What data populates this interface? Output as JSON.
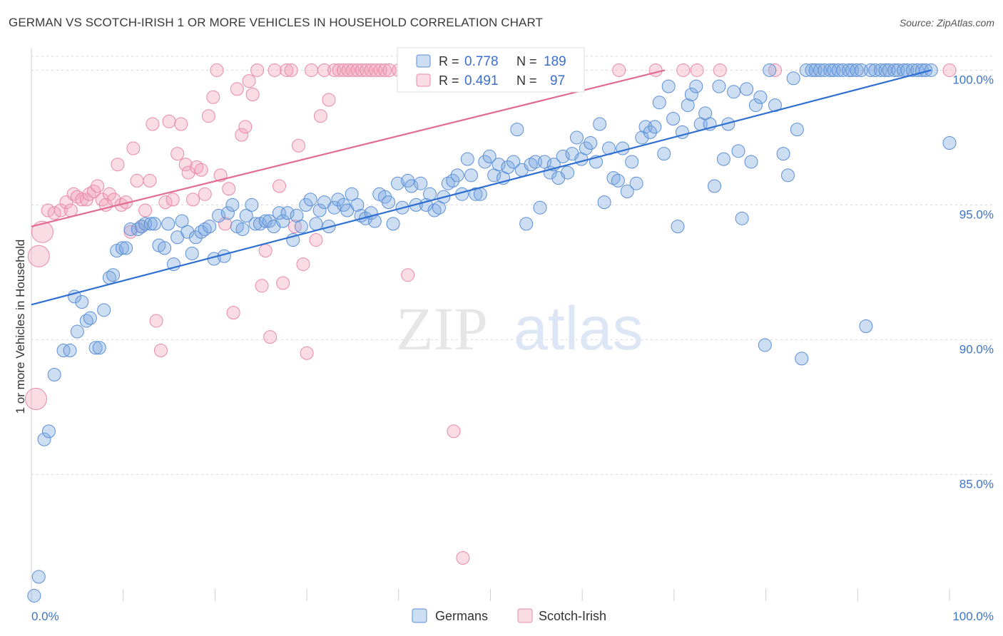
{
  "title": "GERMAN VS SCOTCH-IRISH 1 OR MORE VEHICLES IN HOUSEHOLD CORRELATION CHART",
  "source": "Source: ZipAtlas.com",
  "watermark": {
    "zip": "ZIP",
    "atlas": "atlas"
  },
  "legend_top": [
    {
      "r_label": "R =",
      "r_value": "0.778",
      "n_label": "N =",
      "n_value": "189",
      "color": "#7ba7e0"
    },
    {
      "r_label": "R =",
      "r_value": "0.491",
      "n_label": "N =",
      "n_value": "97",
      "color": "#f1a3bb"
    }
  ],
  "legend_bottom": [
    {
      "label": "Germans",
      "color": "#7ba7e0"
    },
    {
      "label": "Scotch-Irish",
      "color": "#f1a3bb"
    }
  ],
  "chart_data": {
    "type": "scatter",
    "title": "GERMAN VS SCOTCH-IRISH 1 OR MORE VEHICLES IN HOUSEHOLD CORRELATION CHART",
    "xlabel": "",
    "ylabel": "1 or more Vehicles in Household",
    "xlim": [
      0,
      100
    ],
    "ylim": [
      80.3,
      100.7
    ],
    "x_ticks": [
      "0.0%",
      "100.0%"
    ],
    "y_ticks": [
      {
        "value": 85,
        "label": "85.0%"
      },
      {
        "value": 90,
        "label": "90.0%"
      },
      {
        "value": 95,
        "label": "95.0%"
      },
      {
        "value": 100,
        "label": "100.0%"
      }
    ],
    "grid": true,
    "legend_position": "top-center",
    "series": [
      {
        "name": "Germans",
        "color": "#7ba7e0",
        "trendline": {
          "x": [
            0,
            98
          ],
          "y": [
            91.3,
            100.0
          ]
        },
        "points": [
          [
            0.3,
            80.5
          ],
          [
            0.8,
            81.2
          ],
          [
            1.4,
            86.3
          ],
          [
            1.9,
            86.6
          ],
          [
            2.5,
            88.7
          ],
          [
            3.5,
            89.6
          ],
          [
            4.2,
            89.6
          ],
          [
            4.7,
            91.6
          ],
          [
            5.0,
            90.3
          ],
          [
            5.5,
            91.4
          ],
          [
            6.0,
            90.7
          ],
          [
            6.4,
            90.8
          ],
          [
            7.0,
            89.7
          ],
          [
            7.4,
            89.7
          ],
          [
            7.9,
            91.1
          ],
          [
            8.5,
            92.3
          ],
          [
            8.9,
            92.4
          ],
          [
            9.3,
            93.3
          ],
          [
            9.9,
            93.4
          ],
          [
            10.3,
            93.4
          ],
          [
            10.8,
            94.1
          ],
          [
            11.6,
            94.1
          ],
          [
            12.0,
            94.2
          ],
          [
            12.4,
            94.3
          ],
          [
            13.0,
            94.3
          ],
          [
            13.4,
            94.3
          ],
          [
            13.9,
            93.5
          ],
          [
            14.5,
            93.4
          ],
          [
            14.9,
            94.3
          ],
          [
            15.5,
            92.8
          ],
          [
            15.9,
            93.8
          ],
          [
            16.4,
            94.4
          ],
          [
            17.0,
            94.0
          ],
          [
            17.5,
            93.2
          ],
          [
            17.9,
            93.8
          ],
          [
            18.5,
            94.0
          ],
          [
            18.9,
            94.1
          ],
          [
            19.4,
            94.2
          ],
          [
            19.9,
            93.0
          ],
          [
            20.4,
            94.6
          ],
          [
            21.0,
            93.1
          ],
          [
            21.4,
            94.7
          ],
          [
            21.9,
            95.0
          ],
          [
            22.4,
            94.2
          ],
          [
            23.0,
            94.1
          ],
          [
            23.4,
            94.6
          ],
          [
            24.0,
            95.0
          ],
          [
            24.4,
            94.3
          ],
          [
            24.9,
            94.3
          ],
          [
            25.5,
            94.4
          ],
          [
            25.9,
            94.4
          ],
          [
            26.4,
            94.2
          ],
          [
            27.0,
            94.7
          ],
          [
            27.4,
            94.4
          ],
          [
            27.9,
            94.7
          ],
          [
            28.5,
            93.7
          ],
          [
            28.9,
            94.6
          ],
          [
            29.4,
            94.2
          ],
          [
            29.9,
            95.0
          ],
          [
            30.4,
            95.2
          ],
          [
            31.0,
            94.3
          ],
          [
            31.4,
            94.8
          ],
          [
            31.9,
            95.1
          ],
          [
            32.4,
            94.2
          ],
          [
            33.0,
            94.9
          ],
          [
            33.4,
            95.2
          ],
          [
            34.0,
            95.0
          ],
          [
            34.4,
            94.8
          ],
          [
            34.9,
            95.4
          ],
          [
            35.5,
            95.0
          ],
          [
            35.9,
            94.6
          ],
          [
            36.4,
            94.5
          ],
          [
            37.0,
            94.7
          ],
          [
            37.4,
            94.4
          ],
          [
            37.9,
            95.4
          ],
          [
            38.5,
            95.3
          ],
          [
            38.9,
            95.1
          ],
          [
            39.4,
            94.3
          ],
          [
            39.9,
            95.8
          ],
          [
            40.4,
            94.9
          ],
          [
            41.0,
            95.9
          ],
          [
            41.4,
            95.7
          ],
          [
            41.9,
            95.0
          ],
          [
            42.4,
            95.8
          ],
          [
            43.0,
            95.0
          ],
          [
            43.4,
            95.4
          ],
          [
            43.9,
            94.8
          ],
          [
            44.4,
            94.9
          ],
          [
            44.9,
            95.3
          ],
          [
            45.4,
            95.8
          ],
          [
            45.9,
            95.9
          ],
          [
            46.4,
            96.1
          ],
          [
            46.9,
            95.4
          ],
          [
            47.5,
            96.7
          ],
          [
            47.9,
            96.1
          ],
          [
            48.4,
            95.4
          ],
          [
            48.9,
            95.4
          ],
          [
            49.4,
            96.6
          ],
          [
            49.9,
            96.8
          ],
          [
            50.4,
            96.1
          ],
          [
            50.9,
            96.5
          ],
          [
            51.4,
            96.0
          ],
          [
            51.9,
            96.4
          ],
          [
            52.5,
            96.6
          ],
          [
            52.9,
            97.8
          ],
          [
            53.4,
            96.3
          ],
          [
            53.9,
            94.3
          ],
          [
            54.4,
            96.5
          ],
          [
            54.9,
            96.6
          ],
          [
            55.4,
            94.9
          ],
          [
            55.9,
            96.6
          ],
          [
            56.5,
            96.2
          ],
          [
            56.9,
            96.5
          ],
          [
            57.4,
            96.0
          ],
          [
            57.9,
            96.8
          ],
          [
            58.4,
            96.2
          ],
          [
            58.9,
            96.9
          ],
          [
            59.4,
            97.5
          ],
          [
            59.9,
            96.7
          ],
          [
            60.4,
            97.1
          ],
          [
            60.9,
            97.3
          ],
          [
            61.5,
            96.6
          ],
          [
            61.9,
            98.0
          ],
          [
            62.4,
            95.1
          ],
          [
            62.9,
            97.1
          ],
          [
            63.4,
            96.0
          ],
          [
            63.9,
            95.9
          ],
          [
            64.4,
            97.1
          ],
          [
            64.9,
            95.5
          ],
          [
            65.4,
            96.6
          ],
          [
            65.9,
            95.8
          ],
          [
            66.5,
            97.5
          ],
          [
            66.9,
            97.9
          ],
          [
            67.4,
            97.7
          ],
          [
            67.9,
            97.9
          ],
          [
            68.4,
            98.8
          ],
          [
            68.9,
            96.9
          ],
          [
            69.4,
            99.4
          ],
          [
            69.9,
            98.2
          ],
          [
            70.4,
            94.2
          ],
          [
            70.9,
            97.7
          ],
          [
            71.5,
            98.7
          ],
          [
            71.9,
            99.1
          ],
          [
            72.4,
            99.4
          ],
          [
            72.9,
            98.0
          ],
          [
            73.4,
            98.4
          ],
          [
            73.9,
            98.0
          ],
          [
            74.4,
            95.7
          ],
          [
            74.9,
            99.4
          ],
          [
            75.4,
            96.7
          ],
          [
            75.9,
            98.0
          ],
          [
            76.5,
            99.2
          ],
          [
            77.0,
            97.0
          ],
          [
            77.4,
            94.5
          ],
          [
            77.9,
            99.3
          ],
          [
            78.4,
            96.6
          ],
          [
            78.9,
            98.7
          ],
          [
            79.4,
            99.0
          ],
          [
            79.9,
            89.8
          ],
          [
            80.4,
            100
          ],
          [
            81.0,
            98.7
          ],
          [
            81.9,
            96.9
          ],
          [
            82.4,
            96.1
          ],
          [
            83.0,
            99.7
          ],
          [
            83.4,
            97.8
          ],
          [
            83.9,
            89.3
          ],
          [
            84.4,
            100
          ],
          [
            85.0,
            100
          ],
          [
            85.4,
            100
          ],
          [
            85.9,
            100
          ],
          [
            86.4,
            100
          ],
          [
            87.0,
            100
          ],
          [
            87.4,
            100
          ],
          [
            87.9,
            100
          ],
          [
            88.4,
            100
          ],
          [
            89.0,
            100
          ],
          [
            89.4,
            100
          ],
          [
            89.9,
            100
          ],
          [
            90.4,
            100
          ],
          [
            90.9,
            90.5
          ],
          [
            91.4,
            100
          ],
          [
            91.9,
            100
          ],
          [
            92.5,
            100
          ],
          [
            93.0,
            100
          ],
          [
            93.4,
            100
          ],
          [
            94.0,
            100
          ],
          [
            94.4,
            100
          ],
          [
            95.0,
            100
          ],
          [
            95.4,
            100
          ],
          [
            96.0,
            100
          ],
          [
            96.5,
            100
          ],
          [
            97.0,
            100
          ],
          [
            97.4,
            100
          ],
          [
            98.0,
            100
          ],
          [
            100.0,
            97.3
          ]
        ]
      },
      {
        "name": "Scotch-Irish",
        "color": "#f1a3bb",
        "trendline": {
          "x": [
            0,
            69
          ],
          "y": [
            94.2,
            100.0
          ]
        },
        "points": [
          [
            0.5,
            87.8
          ],
          [
            0.8,
            93.1
          ],
          [
            1.2,
            94.0
          ],
          [
            1.8,
            94.8
          ],
          [
            2.5,
            94.7
          ],
          [
            3.2,
            94.8
          ],
          [
            3.8,
            95.1
          ],
          [
            4.3,
            94.8
          ],
          [
            4.6,
            95.4
          ],
          [
            5.0,
            95.3
          ],
          [
            5.5,
            95.2
          ],
          [
            6.0,
            95.2
          ],
          [
            6.3,
            95.4
          ],
          [
            6.8,
            95.5
          ],
          [
            7.2,
            95.7
          ],
          [
            7.7,
            95.2
          ],
          [
            8.1,
            95.0
          ],
          [
            8.5,
            95.4
          ],
          [
            9.0,
            95.2
          ],
          [
            9.4,
            96.5
          ],
          [
            9.8,
            95.0
          ],
          [
            10.3,
            95.1
          ],
          [
            10.8,
            94.0
          ],
          [
            11.1,
            97.1
          ],
          [
            11.5,
            95.9
          ],
          [
            12.0,
            94.2
          ],
          [
            12.4,
            94.8
          ],
          [
            12.9,
            95.9
          ],
          [
            13.2,
            98.0
          ],
          [
            13.6,
            90.7
          ],
          [
            14.1,
            89.6
          ],
          [
            14.6,
            95.1
          ],
          [
            15.0,
            98.1
          ],
          [
            15.4,
            95.2
          ],
          [
            15.9,
            96.9
          ],
          [
            16.3,
            98.0
          ],
          [
            16.8,
            96.5
          ],
          [
            17.1,
            96.2
          ],
          [
            17.6,
            95.2
          ],
          [
            18.0,
            96.4
          ],
          [
            18.5,
            96.3
          ],
          [
            18.9,
            95.4
          ],
          [
            19.3,
            98.3
          ],
          [
            19.8,
            99.0
          ],
          [
            20.2,
            100
          ],
          [
            20.6,
            96.1
          ],
          [
            21.1,
            94.3
          ],
          [
            21.5,
            95.6
          ],
          [
            22.0,
            91.0
          ],
          [
            22.4,
            99.3
          ],
          [
            22.9,
            97.6
          ],
          [
            23.3,
            97.9
          ],
          [
            23.7,
            99.6
          ],
          [
            24.1,
            99.1
          ],
          [
            24.6,
            100
          ],
          [
            25.1,
            92.0
          ],
          [
            25.5,
            93.3
          ],
          [
            26.0,
            90.1
          ],
          [
            26.5,
            100
          ],
          [
            27.0,
            95.7
          ],
          [
            27.4,
            92.1
          ],
          [
            27.8,
            100
          ],
          [
            28.3,
            100
          ],
          [
            28.7,
            94.2
          ],
          [
            29.1,
            97.2
          ],
          [
            29.6,
            92.8
          ],
          [
            30.0,
            89.5
          ],
          [
            30.5,
            100
          ],
          [
            31.0,
            93.7
          ],
          [
            31.5,
            98.3
          ],
          [
            31.9,
            100
          ],
          [
            32.4,
            98.9
          ],
          [
            33.0,
            100
          ],
          [
            33.5,
            100
          ],
          [
            34.0,
            100
          ],
          [
            34.5,
            100
          ],
          [
            35.0,
            100
          ],
          [
            35.5,
            100
          ],
          [
            36.0,
            100
          ],
          [
            36.5,
            100
          ],
          [
            37.0,
            100
          ],
          [
            37.5,
            100
          ],
          [
            38.0,
            100
          ],
          [
            38.5,
            100
          ],
          [
            39.0,
            100
          ],
          [
            40.0,
            100
          ],
          [
            41.0,
            92.4
          ],
          [
            44.0,
            100
          ],
          [
            46.0,
            86.6
          ],
          [
            47.0,
            81.9
          ],
          [
            64.0,
            100
          ],
          [
            68.0,
            100
          ],
          [
            71.0,
            100
          ],
          [
            72.5,
            100
          ],
          [
            75.0,
            100
          ],
          [
            81.0,
            100
          ],
          [
            100.0,
            100
          ]
        ]
      }
    ]
  }
}
